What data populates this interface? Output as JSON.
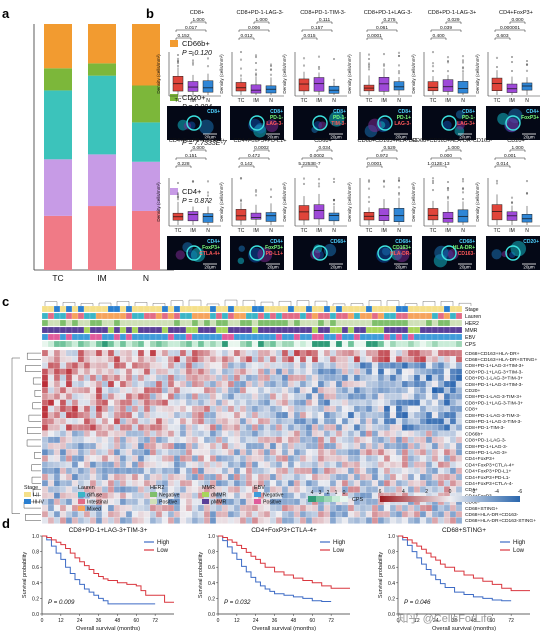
{
  "panels": {
    "a": {
      "letter": "a"
    },
    "b": {
      "letter": "b"
    },
    "c": {
      "letter": "c"
    },
    "d": {
      "letter": "d"
    }
  },
  "watermark": "知乎 @CellsForLife",
  "chart_data": [
    {
      "panel": "a",
      "type": "bar",
      "stacked": true,
      "categories": [
        "TC",
        "IM",
        "N"
      ],
      "yticks": [
        "0",
        "0.2",
        "0.4",
        "0.6",
        "0.8",
        "1.0"
      ],
      "ylim": [
        0,
        1
      ],
      "series": [
        {
          "name": "CD8+",
          "color": "#f07a86",
          "values": [
            0.22,
            0.26,
            0.24
          ],
          "p_label": "P = 0.011"
        },
        {
          "name": "CD4+",
          "color": "#c79be6",
          "values": [
            0.23,
            0.21,
            0.2
          ],
          "p_label": "P = 0.872"
        },
        {
          "name": "CD68+",
          "color": "#3cc3bb",
          "values": [
            0.28,
            0.32,
            0.16
          ],
          "p_label": "P = 7.7333E-7"
        },
        {
          "name": "CD20+",
          "color": "#7cb73a",
          "values": [
            0.09,
            0.05,
            0.15
          ],
          "p_label": "P = 0.004"
        },
        {
          "name": "CD66b+",
          "color": "#f29b30",
          "values": [
            0.18,
            0.16,
            0.25
          ],
          "p_label": "P = 0.120"
        }
      ]
    },
    {
      "panel": "b",
      "type": "box",
      "ylabel": "Density (cells/mm²)",
      "groups": [
        "TC",
        "IM",
        "N"
      ],
      "group_colors": [
        "#e0443a",
        "#9e49d8",
        "#2f86d6"
      ],
      "plots": [
        {
          "title": "CD8+",
          "pvals": [
            "0.152",
            "0.017",
            "1.000"
          ],
          "stain": [
            "CD8+"
          ]
        },
        {
          "title": "CD8+PD-1-LAG-3-",
          "pvals": [
            "0.012",
            "0.006",
            "1.000"
          ],
          "stain": [
            "CD8+",
            "PD-1-",
            "LAG-3-"
          ]
        },
        {
          "title": "CD8+PD-1-TIM-3-",
          "pvals": [
            "0.015",
            "0.157",
            "0.111"
          ],
          "stain": [
            "CD8+",
            "PD-1-",
            "TIM-3-"
          ]
        },
        {
          "title": "CD8+PD-1+LAG-3-",
          "pvals": [
            "0.0001",
            "0.061",
            "0.275"
          ],
          "stain": [
            "CD8+",
            "PD-1+",
            "LAG-3-"
          ]
        },
        {
          "title": "CD8+PD-1-LAG-3+",
          "pvals": [
            "0.400",
            "0.039",
            "0.029"
          ],
          "stain": [
            "CD8+",
            "PD-1-",
            "LAG-3+"
          ]
        },
        {
          "title": "CD4+FoxP3+",
          "pvals": [
            "0.603",
            "0.000001",
            "0.000"
          ],
          "stain": [
            "CD4+",
            "FoxP3+"
          ]
        },
        {
          "title": "CD4+FoxP3+CTLA-4+",
          "pvals": [
            "0.228",
            "0.151",
            "0.000"
          ],
          "stain": [
            "CD4+",
            "FoxP3+",
            "CTLA-4+"
          ]
        },
        {
          "title": "CD4+FoxP3+PD-L1+",
          "pvals": [
            "0.142",
            "0.472",
            "0.0002"
          ],
          "stain": [
            "CD4+",
            "FoxP3+",
            "PD-L1+"
          ]
        },
        {
          "title": "CD68+",
          "pvals": [
            "5.2253E-7",
            "0.0002",
            "0.034"
          ],
          "stain": [
            "CD68+"
          ]
        },
        {
          "title": "CD68+CD163+HLA-DR-",
          "pvals": [
            "0.0001",
            "0.972",
            "0.529"
          ],
          "stain": [
            "CD68+",
            "CD163+",
            "HLA-DR-"
          ]
        },
        {
          "title": "CD68+CD163+HLA-DR-CD163-",
          "pvals": [
            "1.012E-13",
            "0.000",
            "1.000"
          ],
          "stain": [
            "CD68+",
            "HLA-DR+",
            "CD163-"
          ]
        },
        {
          "title": "CD20+",
          "pvals": [
            "0.014",
            "0.001",
            "1.000"
          ],
          "stain": [
            "CD20+"
          ]
        }
      ],
      "scale_bar": "20μm"
    },
    {
      "panel": "c",
      "type": "heatmap",
      "annotation_tracks": [
        "Stage",
        "Lauren",
        "HER2",
        "MMR",
        "EBV",
        "CPS"
      ],
      "row_labels": [
        "CD68+CD163+HLA-DR+",
        "CD68+CD163+HLA-DR+STING+",
        "CD8+PD-1+LAG-3+TIM-3+",
        "CD8+PD-1+LAG-3+TIM-3-",
        "CD8+PD-1-LAG-3+TIM-3+",
        "CD8+PD-1+LAG-3+TIM-3-",
        "CD20+",
        "CD8+PD-1-LAG-3-TIM-3+",
        "CD8+PD-1+LAG-3-TIM-3+",
        "CD8+",
        "CD8+PD-1-LAG-3-TIM-3-",
        "CD8+PD-1+LAG-3-TIM-3-",
        "CD8+PD-1-TIM-3-",
        "CD66b+",
        "CD8+PD-1-LAG-3-",
        "CD8+PD-1+LAG-3-",
        "CD8+PD-1-LAG-3+",
        "CD4+FoxP3+",
        "CD4+FoxP3+CTLA-4+",
        "CD4+FoxP3+PD-L1+",
        "CD4+FoxP3+PD-L1-",
        "CD4+FoxP3+CTLA-4-",
        "CD4+",
        "CD4+FoxP3-",
        "CD68+",
        "CD68+STING+",
        "CD68+HLA-DR+CD163-",
        "CD68+HLA-DR+CD163-STING+"
      ],
      "legend": {
        "Stage": [
          {
            "label": "I-II",
            "color": "#f5e08a"
          },
          {
            "label": "III-IV",
            "color": "#2a7fd0"
          }
        ],
        "Lauren": [
          {
            "label": "diffuse",
            "color": "#3bb5c7"
          },
          {
            "label": "Intestinal",
            "color": "#e26b86"
          },
          {
            "label": "Mixed",
            "color": "#f6a35c"
          }
        ],
        "HER2": [
          {
            "label": "Negative",
            "color": "#7fbf6b"
          },
          {
            "label": "Positive",
            "color": "#cfe0b8"
          }
        ],
        "MMR": [
          {
            "label": "dMMR",
            "color": "#a8d55b"
          },
          {
            "label": "pMMR",
            "color": "#5a3f99"
          }
        ],
        "EBV": [
          {
            "label": "Negative",
            "color": "#3f9bd9"
          },
          {
            "label": "Positive",
            "color": "#e15c9c"
          }
        ],
        "CPS": {
          "ticks": [
            "4",
            "3",
            "2",
            "1",
            "0"
          ],
          "title": "CPS"
        },
        "scale": {
          "ticks": [
            "6",
            "4",
            "2",
            "0",
            "-2",
            "-4",
            "-6"
          ]
        }
      }
    },
    {
      "panel": "d",
      "type": "line",
      "subtype": "kaplan-meier",
      "ylabel": "Survival probability",
      "xlabel": "Overall survival (months)",
      "xticks": [
        0,
        12,
        24,
        36,
        48,
        60,
        72
      ],
      "xlim": [
        0,
        84
      ],
      "yticks": [
        "0.0",
        "0.2",
        "0.4",
        "0.6",
        "0.8",
        "1.0"
      ],
      "ylim": [
        0,
        1
      ],
      "plots": [
        {
          "title": "CD8+PD-1+LAG-3+TIM-3+",
          "p_label": "P = 0.009",
          "series": [
            {
              "name": "High",
              "color": "#3d6bc5",
              "x": [
                0,
                3,
                6,
                9,
                12,
                15,
                18,
                21,
                24,
                27,
                30,
                33,
                36,
                39,
                42,
                45,
                48,
                54,
                60,
                66,
                72
              ],
              "y": [
                1,
                0.95,
                0.87,
                0.78,
                0.7,
                0.6,
                0.52,
                0.44,
                0.38,
                0.32,
                0.28,
                0.24,
                0.2,
                0.17,
                0.13,
                0.13,
                0.13,
                0.13,
                0.13,
                0.13,
                0.13
              ]
            },
            {
              "name": "Low",
              "color": "#d9363e",
              "x": [
                0,
                3,
                6,
                9,
                12,
                15,
                18,
                21,
                24,
                27,
                30,
                33,
                36,
                39,
                42,
                48,
                54,
                60,
                63,
                66,
                72,
                78,
                84
              ],
              "y": [
                1,
                0.98,
                0.95,
                0.92,
                0.89,
                0.84,
                0.78,
                0.72,
                0.67,
                0.62,
                0.57,
                0.52,
                0.48,
                0.45,
                0.43,
                0.4,
                0.38,
                0.36,
                0.3,
                0.24,
                0.24,
                0.15,
                0.15
              ]
            }
          ]
        },
        {
          "title": "CD4+FoxP3+CTLA-4+",
          "p_label": "P = 0.032",
          "series": [
            {
              "name": "High",
              "color": "#3d6bc5",
              "x": [
                0,
                3,
                6,
                9,
                12,
                15,
                18,
                21,
                24,
                27,
                30,
                33,
                36,
                42,
                48,
                54,
                60,
                66,
                72
              ],
              "y": [
                1,
                0.94,
                0.86,
                0.78,
                0.7,
                0.61,
                0.54,
                0.47,
                0.41,
                0.36,
                0.32,
                0.29,
                0.26,
                0.24,
                0.22,
                0.2,
                0.17,
                0.16,
                0.16
              ]
            },
            {
              "name": "Low",
              "color": "#d9363e",
              "x": [
                0,
                3,
                6,
                9,
                12,
                15,
                18,
                21,
                24,
                27,
                30,
                36,
                42,
                48,
                54,
                60,
                66,
                72,
                78,
                84
              ],
              "y": [
                1,
                0.98,
                0.95,
                0.92,
                0.88,
                0.84,
                0.79,
                0.74,
                0.7,
                0.65,
                0.6,
                0.54,
                0.5,
                0.46,
                0.43,
                0.4,
                0.36,
                0.33,
                0.33,
                0.33
              ]
            }
          ]
        },
        {
          "title": "CD68+STING+",
          "p_label": "P = 0.046",
          "series": [
            {
              "name": "High",
              "color": "#3d6bc5",
              "x": [
                0,
                3,
                6,
                9,
                12,
                15,
                18,
                21,
                24,
                27,
                30,
                36,
                42,
                48,
                54,
                60,
                66,
                72
              ],
              "y": [
                1,
                0.95,
                0.88,
                0.8,
                0.72,
                0.64,
                0.57,
                0.5,
                0.44,
                0.39,
                0.34,
                0.28,
                0.25,
                0.22,
                0.2,
                0.18,
                0.17,
                0.17
              ]
            },
            {
              "name": "Low",
              "color": "#d9363e",
              "x": [
                0,
                3,
                6,
                9,
                12,
                15,
                18,
                21,
                24,
                27,
                30,
                36,
                42,
                48,
                54,
                60,
                66,
                72,
                78,
                84
              ],
              "y": [
                1,
                0.98,
                0.95,
                0.91,
                0.87,
                0.83,
                0.78,
                0.73,
                0.69,
                0.64,
                0.6,
                0.55,
                0.5,
                0.46,
                0.42,
                0.38,
                0.33,
                0.3,
                0.3,
                0.3
              ]
            }
          ]
        }
      ]
    }
  ]
}
